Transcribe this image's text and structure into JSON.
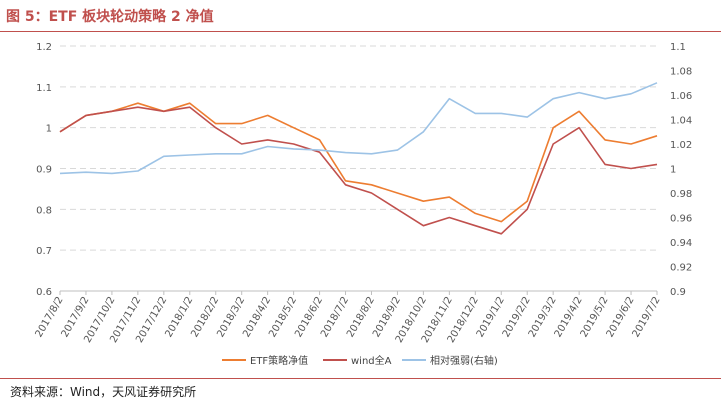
{
  "header": {
    "title": "图 5：ETF 板块轮动策略 2 净值"
  },
  "footer": {
    "source": "资料来源：Wind，天风证券研究所"
  },
  "colors": {
    "etf": "#ED7D31",
    "wind": "#C0504D",
    "relative": "#9DC3E6",
    "grid": "#d9d9d9",
    "title": "#c0504d"
  },
  "chart_data": {
    "type": "line",
    "title": "",
    "xlabel": "",
    "ylabel": "",
    "categories": [
      "2017/8/2",
      "2017/9/2",
      "2017/10/2",
      "2017/11/2",
      "2017/12/2",
      "2018/1/2",
      "2018/2/2",
      "2018/3/2",
      "2018/4/2",
      "2018/5/2",
      "2018/6/2",
      "2018/7/2",
      "2018/8/2",
      "2018/9/2",
      "2018/10/2",
      "2018/11/2",
      "2018/12/2",
      "2019/1/2",
      "2019/2/2",
      "2019/3/2",
      "2019/4/2",
      "2019/5/2",
      "2019/6/2",
      "2019/7/2"
    ],
    "left_axis": {
      "ylim": [
        0.6,
        1.2
      ],
      "ticks": [
        "0.6",
        "0.7",
        "0.8",
        "0.9",
        "1",
        "1.1",
        "1.2"
      ]
    },
    "right_axis": {
      "ylim": [
        0.9,
        1.1
      ],
      "ticks": [
        "0.9",
        "0.92",
        "0.94",
        "0.96",
        "0.98",
        "1",
        "1.02",
        "1.04",
        "1.06",
        "1.08",
        "1.1"
      ]
    },
    "grid": "horizontal-dashed",
    "legend_position": "bottom",
    "series": [
      {
        "name": "ETF策略净值",
        "axis": "left",
        "values": [
          0.99,
          1.03,
          1.04,
          1.06,
          1.04,
          1.06,
          1.01,
          1.01,
          1.03,
          1.0,
          0.97,
          0.87,
          0.86,
          0.84,
          0.82,
          0.83,
          0.79,
          0.77,
          0.82,
          1.0,
          1.04,
          0.97,
          0.96,
          0.98
        ]
      },
      {
        "name": "wind全A",
        "axis": "left",
        "values": [
          0.99,
          1.03,
          1.04,
          1.05,
          1.04,
          1.05,
          1.0,
          0.96,
          0.97,
          0.96,
          0.94,
          0.86,
          0.84,
          0.8,
          0.76,
          0.78,
          0.76,
          0.74,
          0.8,
          0.96,
          1.0,
          0.91,
          0.9,
          0.91
        ]
      },
      {
        "name": "相对强弱(右轴)",
        "axis": "right",
        "values": [
          0.996,
          0.997,
          0.996,
          0.998,
          1.01,
          1.011,
          1.012,
          1.012,
          1.018,
          1.016,
          1.015,
          1.013,
          1.012,
          1.015,
          1.03,
          1.057,
          1.045,
          1.045,
          1.042,
          1.057,
          1.062,
          1.057,
          1.061,
          1.07
        ]
      }
    ]
  }
}
